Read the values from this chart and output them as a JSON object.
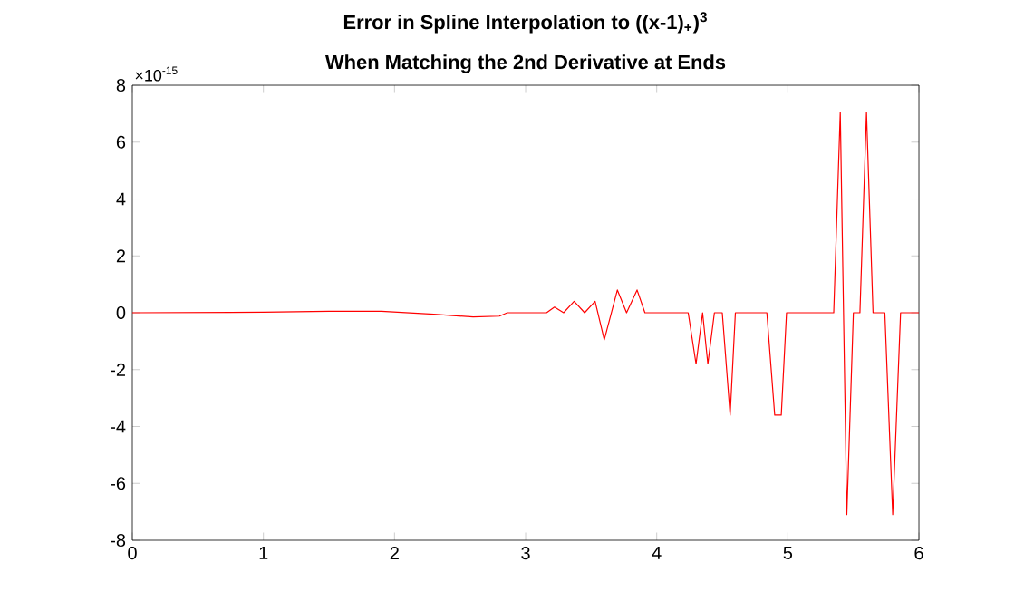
{
  "chart_data": {
    "type": "line",
    "title": "Error in Spline Interpolation to ((x-1)$_{+}$)$^{3}$",
    "subtitle": "When Matching the 2nd Derivative at Ends",
    "annotations": [
      "×10$^{-15}$"
    ],
    "xlim": [
      0,
      6
    ],
    "xticks": [
      0,
      1,
      2,
      3,
      4,
      5,
      6
    ],
    "ylim": [
      -8,
      8
    ],
    "yticks": [
      -8,
      -6,
      -4,
      -2,
      0,
      2,
      4,
      6,
      8
    ],
    "grid": false,
    "marker": "none",
    "line_style": "solid",
    "series": [
      {
        "color": "#ff0000",
        "x": [
          0,
          1,
          1.5,
          1.9,
          2.3,
          2.6,
          2.8,
          2.86,
          3.16,
          3.22,
          3.29,
          3.37,
          3.45,
          3.53,
          3.6,
          3.7,
          3.77,
          3.85,
          3.91,
          4.24,
          4.3,
          4.35,
          4.39,
          4.44,
          4.5,
          4.56,
          4.6,
          4.84,
          4.9,
          4.95,
          4.99,
          5.35,
          5.4,
          5.45,
          5.5,
          5.55,
          5.6,
          5.65,
          5.74,
          5.8,
          5.86,
          6
        ],
        "values": [
          0,
          0.02,
          0.05,
          0.05,
          -0.05,
          -0.15,
          -0.12,
          0,
          0,
          0.2,
          0,
          0.4,
          0,
          0.4,
          -0.95,
          0.8,
          0,
          0.8,
          0,
          0,
          -1.8,
          0,
          -1.8,
          0,
          0,
          -3.6,
          0,
          0,
          -3.6,
          -3.6,
          0,
          0,
          7.05,
          -7.1,
          0,
          0,
          7.05,
          0,
          0,
          -7.1,
          0,
          0
        ]
      }
    ]
  }
}
